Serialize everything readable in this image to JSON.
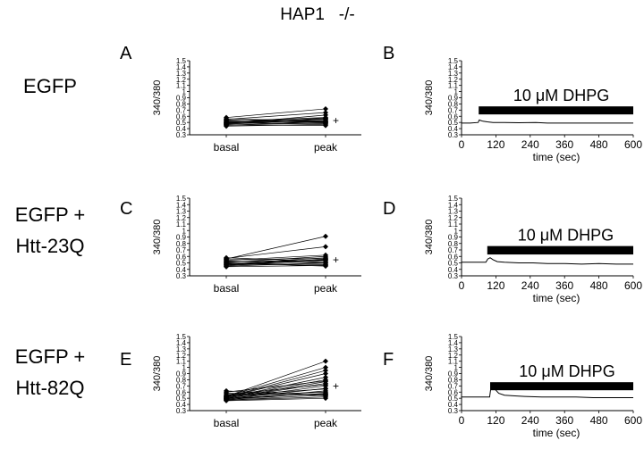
{
  "title": "HAP1   -/-",
  "colors": {
    "ink": "#000000",
    "bar": "#000000",
    "bg": "#ffffff"
  },
  "chart_data": [
    {
      "panel": "A",
      "row_label": [
        "EGFP"
      ],
      "type": "line",
      "ylabel": "340/380",
      "ylim": [
        0.3,
        1.5
      ],
      "yticks": [
        "0.3",
        "0.4",
        "0.5",
        "0.6",
        "0.7",
        "0.8",
        "0.9",
        "1",
        "1.1",
        "1.2",
        "1.3",
        "1.4",
        "1.5"
      ],
      "categories": [
        "basal",
        "peak"
      ],
      "significance_mark": "+",
      "series": [
        [
          0.44,
          0.47
        ],
        [
          0.45,
          0.52
        ],
        [
          0.46,
          0.49
        ],
        [
          0.47,
          0.55
        ],
        [
          0.48,
          0.5
        ],
        [
          0.48,
          0.62
        ],
        [
          0.49,
          0.53
        ],
        [
          0.5,
          0.48
        ],
        [
          0.5,
          0.56
        ],
        [
          0.51,
          0.51
        ],
        [
          0.52,
          0.58
        ],
        [
          0.53,
          0.55
        ],
        [
          0.54,
          0.5
        ],
        [
          0.55,
          0.66
        ],
        [
          0.56,
          0.52
        ],
        [
          0.58,
          0.72
        ],
        [
          0.46,
          0.45
        ],
        [
          0.49,
          0.57
        ]
      ]
    },
    {
      "panel": "B",
      "type": "line",
      "ylabel": "340/380",
      "xlabel": "time (sec)",
      "ylim": [
        0.3,
        1.5
      ],
      "xlim": [
        0,
        600
      ],
      "yticks": [
        "0.3",
        "0.4",
        "0.5",
        "0.6",
        "0.7",
        "0.8",
        "0.9",
        "1",
        "1.1",
        "1.2",
        "1.3",
        "1.4",
        "1.5"
      ],
      "xticks": [
        "0",
        "120",
        "240",
        "360",
        "480",
        "600"
      ],
      "stimulus": {
        "label": "10 μM DHPG",
        "start": 60,
        "end": 600
      },
      "trace": [
        [
          0,
          0.49
        ],
        [
          30,
          0.49
        ],
        [
          58,
          0.5
        ],
        [
          62,
          0.54
        ],
        [
          68,
          0.53
        ],
        [
          75,
          0.52
        ],
        [
          90,
          0.51
        ],
        [
          110,
          0.5
        ],
        [
          150,
          0.5
        ],
        [
          200,
          0.495
        ],
        [
          260,
          0.5
        ],
        [
          300,
          0.49
        ],
        [
          360,
          0.49
        ],
        [
          420,
          0.49
        ],
        [
          480,
          0.49
        ],
        [
          540,
          0.49
        ],
        [
          600,
          0.49
        ]
      ]
    },
    {
      "panel": "C",
      "row_label": [
        "EGFP +",
        "Htt-23Q"
      ],
      "type": "line",
      "ylabel": "340/380",
      "ylim": [
        0.3,
        1.5
      ],
      "yticks": [
        "0.3",
        "0.4",
        "0.5",
        "0.6",
        "0.7",
        "0.8",
        "0.9",
        "1",
        "1.1",
        "1.2",
        "1.3",
        "1.4",
        "1.5"
      ],
      "categories": [
        "basal",
        "peak"
      ],
      "significance_mark": "+",
      "series": [
        [
          0.44,
          0.46
        ],
        [
          0.45,
          0.5
        ],
        [
          0.46,
          0.55
        ],
        [
          0.47,
          0.48
        ],
        [
          0.48,
          0.58
        ],
        [
          0.49,
          0.52
        ],
        [
          0.5,
          0.47
        ],
        [
          0.51,
          0.6
        ],
        [
          0.52,
          0.54
        ],
        [
          0.53,
          0.5
        ],
        [
          0.54,
          0.62
        ],
        [
          0.55,
          0.57
        ],
        [
          0.56,
          0.91
        ],
        [
          0.57,
          0.75
        ],
        [
          0.58,
          0.52
        ],
        [
          0.5,
          0.45
        ],
        [
          0.47,
          0.56
        ]
      ]
    },
    {
      "panel": "D",
      "type": "line",
      "ylabel": "340/380",
      "xlabel": "time (sec)",
      "ylim": [
        0.3,
        1.5
      ],
      "xlim": [
        0,
        600
      ],
      "yticks": [
        "0.3",
        "0.4",
        "0.5",
        "0.6",
        "0.7",
        "0.8",
        "0.9",
        "1",
        "1.1",
        "1.2",
        "1.3",
        "1.4",
        "1.5"
      ],
      "xticks": [
        "0",
        "120",
        "240",
        "360",
        "480",
        "600"
      ],
      "stimulus": {
        "label": "10 μM DHPG",
        "start": 90,
        "end": 600
      },
      "trace": [
        [
          0,
          0.51
        ],
        [
          40,
          0.51
        ],
        [
          85,
          0.51
        ],
        [
          92,
          0.56
        ],
        [
          100,
          0.58
        ],
        [
          110,
          0.55
        ],
        [
          125,
          0.52
        ],
        [
          150,
          0.51
        ],
        [
          200,
          0.5
        ],
        [
          250,
          0.5
        ],
        [
          300,
          0.49
        ],
        [
          360,
          0.49
        ],
        [
          420,
          0.48
        ],
        [
          480,
          0.49
        ],
        [
          540,
          0.48
        ],
        [
          600,
          0.48
        ]
      ]
    },
    {
      "panel": "E",
      "row_label": [
        "EGFP +",
        "Htt-82Q"
      ],
      "type": "line",
      "ylabel": "340/380",
      "ylim": [
        0.3,
        1.5
      ],
      "yticks": [
        "0.3",
        "0.4",
        "0.5",
        "0.6",
        "0.7",
        "0.8",
        "0.9",
        "1",
        "1.1",
        "1.2",
        "1.3",
        "1.4",
        "1.5"
      ],
      "categories": [
        "basal",
        "peak"
      ],
      "significance_mark": "+",
      "series": [
        [
          0.46,
          0.5
        ],
        [
          0.47,
          0.55
        ],
        [
          0.48,
          0.58
        ],
        [
          0.48,
          0.62
        ],
        [
          0.49,
          0.66
        ],
        [
          0.49,
          0.7
        ],
        [
          0.5,
          0.74
        ],
        [
          0.5,
          0.77
        ],
        [
          0.51,
          0.8
        ],
        [
          0.51,
          0.84
        ],
        [
          0.52,
          0.9
        ],
        [
          0.52,
          0.95
        ],
        [
          0.53,
          1.0
        ],
        [
          0.53,
          1.1
        ],
        [
          0.54,
          0.6
        ],
        [
          0.55,
          0.65
        ],
        [
          0.56,
          0.72
        ],
        [
          0.58,
          0.56
        ],
        [
          0.6,
          0.78
        ],
        [
          0.62,
          0.54
        ],
        [
          0.47,
          0.52
        ],
        [
          0.5,
          0.57
        ]
      ]
    },
    {
      "panel": "F",
      "type": "line",
      "ylabel": "340/380",
      "xlabel": "time (sec)",
      "ylim": [
        0.3,
        1.5
      ],
      "xlim": [
        0,
        600
      ],
      "yticks": [
        "0.3",
        "0.4",
        "0.5",
        "0.6",
        "0.7",
        "0.8",
        "0.9",
        "1",
        "1.1",
        "1.2",
        "1.3",
        "1.4",
        "1.5"
      ],
      "xticks": [
        "0",
        "120",
        "240",
        "360",
        "480",
        "600"
      ],
      "stimulus": {
        "label": "10 μM DHPG",
        "start": 100,
        "end": 600
      },
      "trace": [
        [
          0,
          0.52
        ],
        [
          50,
          0.52
        ],
        [
          98,
          0.52
        ],
        [
          104,
          0.72
        ],
        [
          110,
          0.7
        ],
        [
          118,
          0.64
        ],
        [
          130,
          0.58
        ],
        [
          150,
          0.55
        ],
        [
          180,
          0.54
        ],
        [
          220,
          0.53
        ],
        [
          280,
          0.52
        ],
        [
          340,
          0.52
        ],
        [
          400,
          0.52
        ],
        [
          460,
          0.51
        ],
        [
          520,
          0.51
        ],
        [
          600,
          0.51
        ]
      ]
    }
  ]
}
